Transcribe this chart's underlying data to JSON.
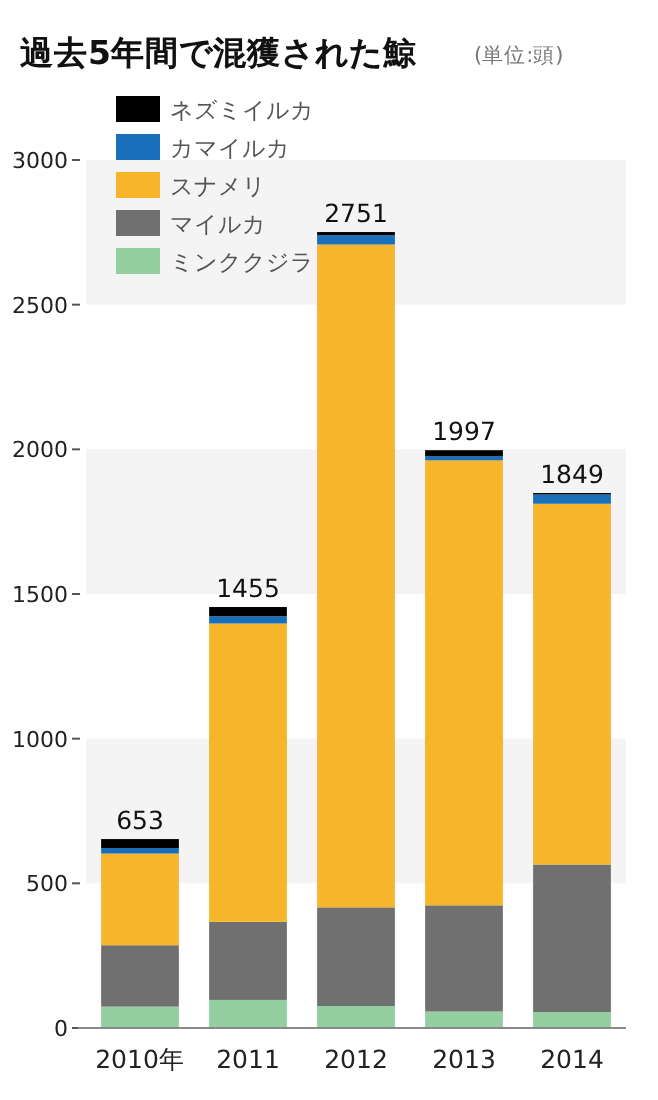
{
  "chart_data": {
    "type": "bar",
    "stacked": true,
    "title": "過去5年間で混獲された鯨",
    "annotations": [
      "(単位:頭)"
    ],
    "categories": [
      "2010年",
      "2011",
      "2012",
      "2013",
      "2014"
    ],
    "series": [
      {
        "name": "ミンククジラ",
        "color": "#93cf9f",
        "values": [
          74,
          97,
          76,
          57,
          55
        ]
      },
      {
        "name": "マイルカ",
        "color": "#707070",
        "values": [
          212,
          270,
          341,
          367,
          510
        ]
      },
      {
        "name": "スナメリ",
        "color": "#f6b52a",
        "values": [
          317,
          1031,
          2291,
          1538,
          1247
        ]
      },
      {
        "name": "カマイルカ",
        "color": "#1a6fba",
        "values": [
          19,
          25,
          32,
          14,
          32
        ]
      },
      {
        "name": "ネズミイルカ",
        "color": "#000000",
        "values": [
          31,
          32,
          11,
          21,
          5
        ]
      }
    ],
    "totals": [
      "653",
      "1455",
      "2751",
      "1997",
      "1849"
    ],
    "ylim": [
      0,
      3000
    ],
    "yticks": [
      0,
      500,
      1000,
      1500,
      2000,
      2500,
      3000
    ],
    "bands": [
      {
        "axis": "y",
        "from": 500,
        "to": 1000,
        "color": "#f4f4f4"
      },
      {
        "axis": "y",
        "from": 1500,
        "to": 2000,
        "color": "#f4f4f4"
      },
      {
        "axis": "y",
        "from": 2500,
        "to": 3000,
        "color": "#f4f4f4"
      }
    ],
    "legend": "top left"
  }
}
